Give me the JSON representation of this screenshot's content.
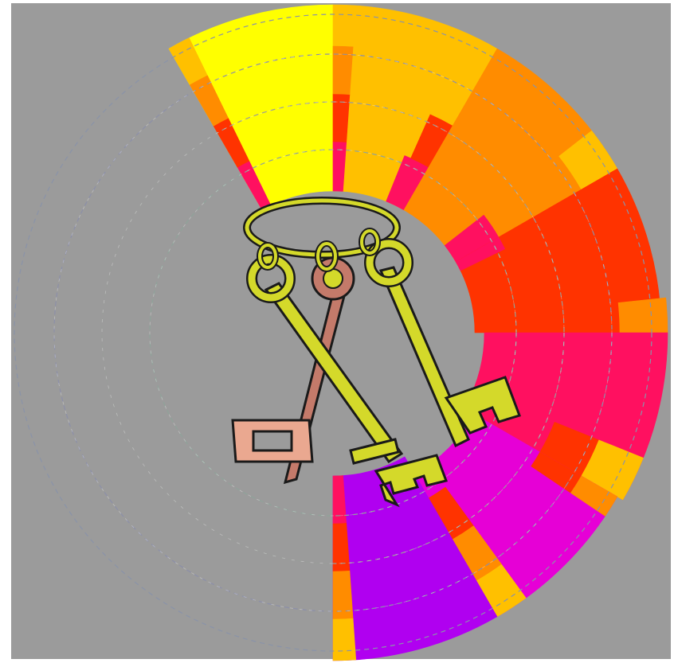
{
  "background": "#9b9b9b",
  "frame_color": "#ffffff",
  "ring_palette": {
    "yellow": "#ffff00",
    "amber": "#ffc000",
    "orange": "#ff8c00",
    "red": "#ff3300",
    "crimson": "#ff1060",
    "magenta": "#e600d6",
    "violet": "#b000f0"
  },
  "keys": {
    "main_color": "#d4d92a",
    "brown_key_color": "#c47a6a",
    "brown_bit_color": "#eaa890",
    "outline_color": "#1a1a1a",
    "count": 3
  }
}
